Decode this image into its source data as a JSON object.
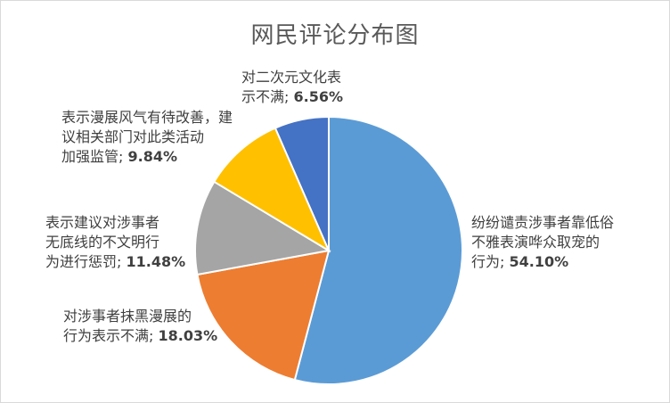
{
  "chart_data": {
    "type": "pie",
    "title": "网民评论分布图",
    "start_angle_deg": 0,
    "direction": "clockwise",
    "slices": [
      {
        "label": "纷纷谴责涉事者靠低俗不雅表演哗众取宠的行为",
        "value": 54.1,
        "value_text": "54.10%",
        "color": "#5B9BD5"
      },
      {
        "label": "对涉事者抹黑漫展的行为表示不满",
        "value": 18.03,
        "value_text": "18.03%",
        "color": "#ED7D31"
      },
      {
        "label": "表示建议对涉事者无底线的不文明行为进行惩罚",
        "value": 11.48,
        "value_text": "11.48%",
        "color": "#A5A5A5"
      },
      {
        "label": "表示漫展风气有待改善，建议相关部门对此类活动加强监管",
        "value": 9.84,
        "value_text": "9.84%",
        "color": "#FFC000"
      },
      {
        "label": "对二次元文化表示不满",
        "value": 6.56,
        "value_text": "6.56%",
        "color": "#4472C4"
      }
    ]
  }
}
